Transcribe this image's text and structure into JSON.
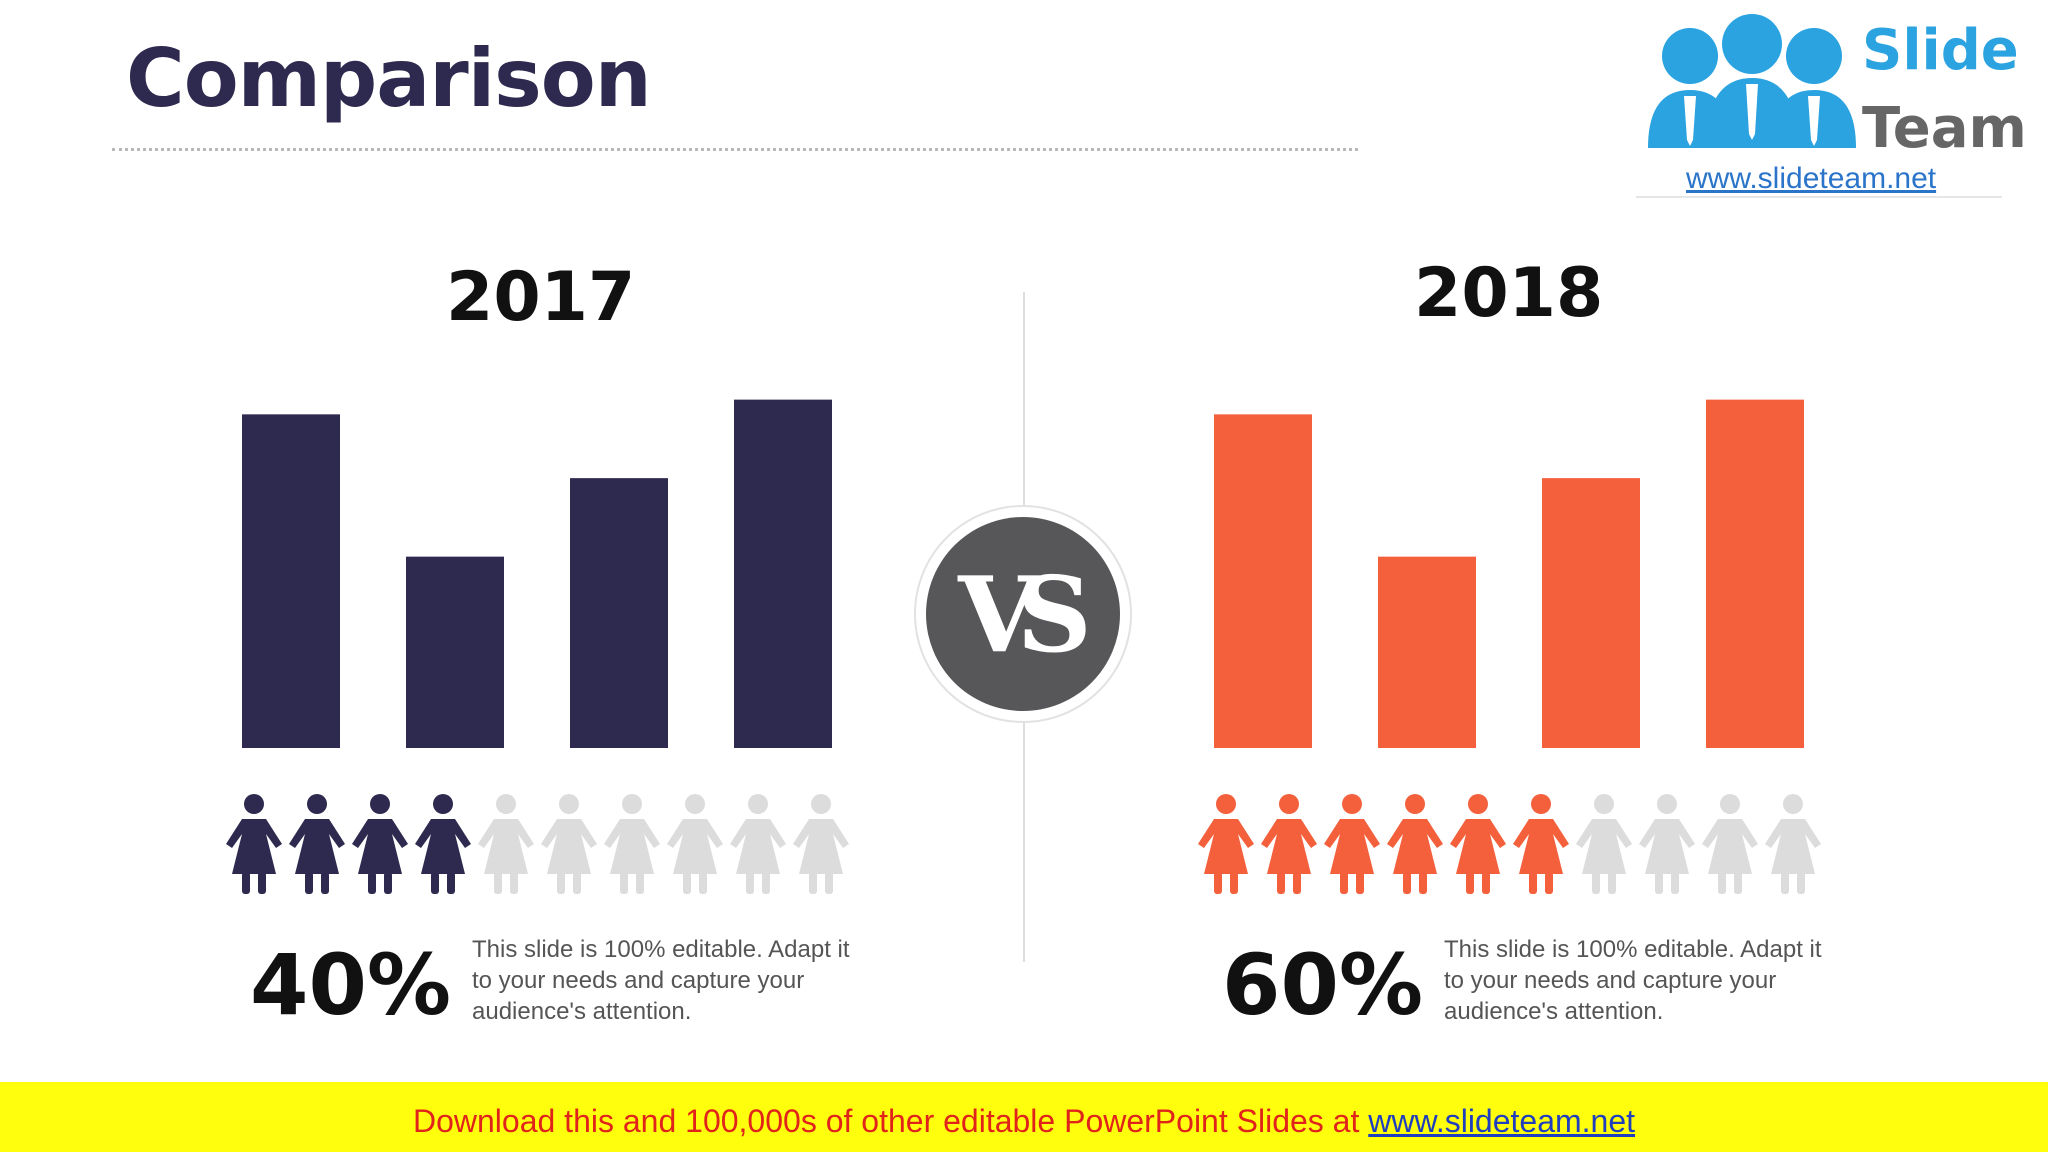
{
  "slide": {
    "title": "Comparison",
    "vs_label": "VS"
  },
  "logo": {
    "line1": "Slide",
    "line2": "Team",
    "url": "www.slideteam.net"
  },
  "colors": {
    "navy": "#2e2a4f",
    "orange": "#f4603c",
    "inactive_person": "#dcdcdc",
    "vs_circle": "#575759"
  },
  "chart_data": [
    {
      "type": "bar",
      "title": "2017",
      "xlabel": "",
      "ylabel": "",
      "categories": [
        "",
        "",
        "",
        ""
      ],
      "values": [
        68,
        39,
        55,
        71
      ],
      "ylim": [
        0,
        75
      ],
      "color": "#2e2a4f",
      "people_total": 10,
      "people_highlighted": 4,
      "percent_label": "40%",
      "description": "This slide is 100% editable. Adapt it to your needs and capture your audience's attention."
    },
    {
      "type": "bar",
      "title": "2018",
      "xlabel": "",
      "ylabel": "",
      "categories": [
        "",
        "",
        "",
        ""
      ],
      "values": [
        68,
        39,
        55,
        71
      ],
      "ylim": [
        0,
        75
      ],
      "color": "#f4603c",
      "people_total": 10,
      "people_highlighted": 6,
      "percent_label": "60%",
      "description": "This slide is 100% editable. Adapt it to your needs and capture your audience's attention."
    }
  ],
  "banner": {
    "text": "Download this and 100,000s of other editable PowerPoint Slides at",
    "link": "www.slideteam.net"
  }
}
